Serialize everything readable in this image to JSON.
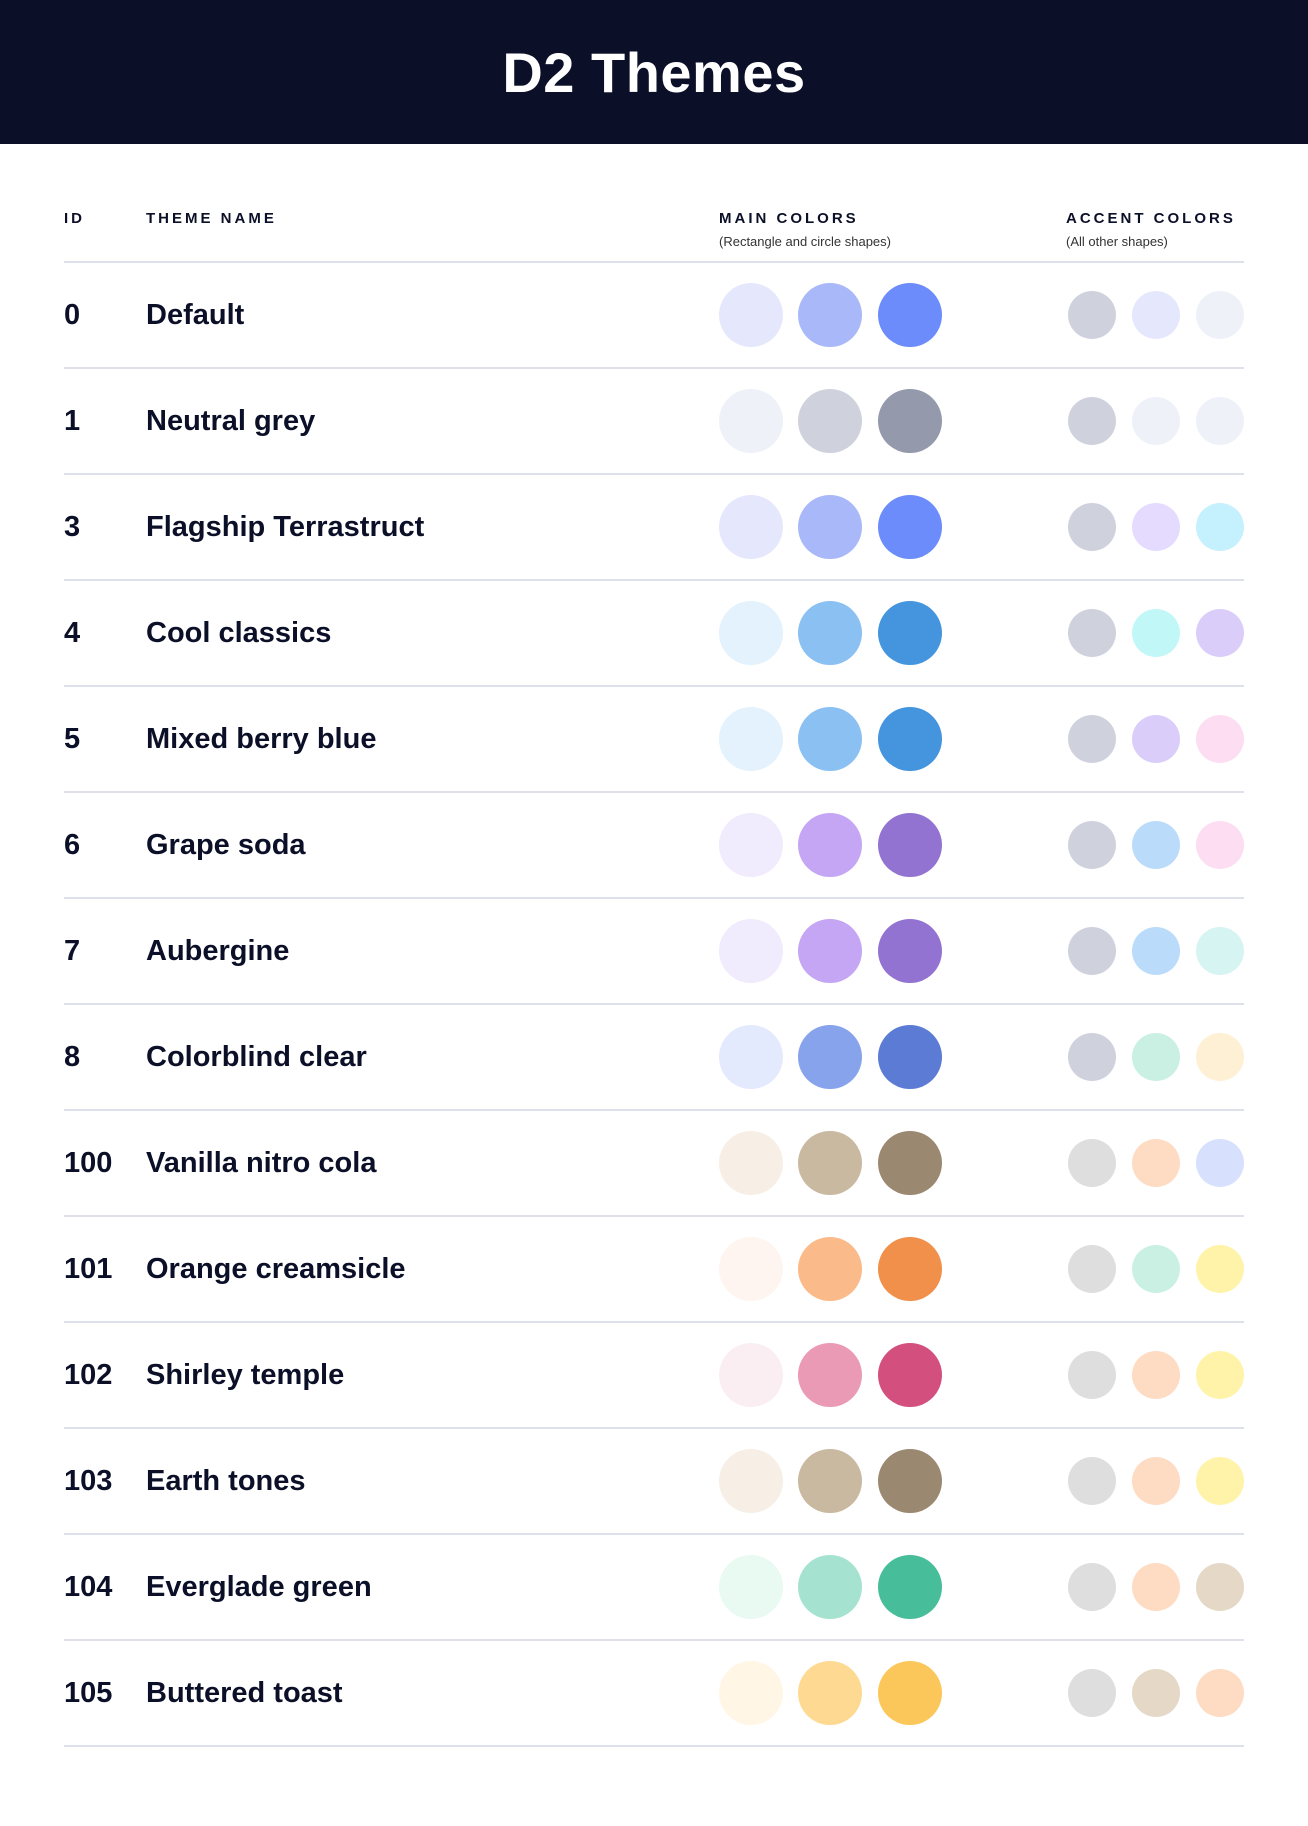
{
  "title": "D2 Themes",
  "columns": {
    "id": "ID",
    "name": "THEME NAME",
    "main": "MAIN COLORS",
    "main_sub": "(Rectangle and circle shapes)",
    "accent": "ACCENT COLORS",
    "accent_sub": "(All other shapes)"
  },
  "themes": [
    {
      "id": "0",
      "name": "Default",
      "main": [
        "#E5E8FD",
        "#A9B8F8",
        "#6C8CFC"
      ],
      "accent": [
        "#CFD2DD",
        "#E5E8FD",
        "#EEF1F8"
      ]
    },
    {
      "id": "1",
      "name": "Neutral grey",
      "main": [
        "#EEF1F8",
        "#CFD2DD",
        "#9499AB"
      ],
      "accent": [
        "#CFD2DD",
        "#EEF1F8",
        "#EEF1F8"
      ]
    },
    {
      "id": "3",
      "name": "Flagship Terrastruct",
      "main": [
        "#E5E8FD",
        "#A9B8F8",
        "#6C8CFC"
      ],
      "accent": [
        "#CFD2DD",
        "#E4DBFE",
        "#C5F0FD"
      ]
    },
    {
      "id": "4",
      "name": "Cool classics",
      "main": [
        "#E3F2FD",
        "#8BC0F3",
        "#4495DE"
      ],
      "accent": [
        "#CFD2DD",
        "#C1F8F7",
        "#DACDFA"
      ]
    },
    {
      "id": "5",
      "name": "Mixed berry blue",
      "main": [
        "#E3F2FD",
        "#8BC0F3",
        "#4495DE"
      ],
      "accent": [
        "#CFD2DD",
        "#DACDFA",
        "#FDDDF1"
      ]
    },
    {
      "id": "6",
      "name": "Grape soda",
      "main": [
        "#F0EBFD",
        "#C4A6F4",
        "#9373D1"
      ],
      "accent": [
        "#CFD2DD",
        "#BADBFA",
        "#FDDDF1"
      ]
    },
    {
      "id": "7",
      "name": "Aubergine",
      "main": [
        "#F0EBFD",
        "#C4A6F4",
        "#9373D1"
      ],
      "accent": [
        "#CFD2DD",
        "#BADBFA",
        "#D6F4F2"
      ]
    },
    {
      "id": "8",
      "name": "Colorblind clear",
      "main": [
        "#E4EAFD",
        "#87A3EC",
        "#5B7BD5"
      ],
      "accent": [
        "#CFD2DD",
        "#C9F0E3",
        "#FEF0D5"
      ]
    },
    {
      "id": "100",
      "name": "Vanilla nitro cola",
      "main": [
        "#F7EFE5",
        "#C9B9A0",
        "#9B8870"
      ],
      "accent": [
        "#DEDEDE",
        "#FEDBC3",
        "#D7E1FD"
      ]
    },
    {
      "id": "101",
      "name": "Orange creamsicle",
      "main": [
        "#FEF5F0",
        "#FBBA89",
        "#F1904A"
      ],
      "accent": [
        "#DEDEDE",
        "#CAF0E3",
        "#FEF3A9"
      ]
    },
    {
      "id": "102",
      "name": "Shirley temple",
      "main": [
        "#FBEEF2",
        "#EA9AB5",
        "#D3507E"
      ],
      "accent": [
        "#DEDEDE",
        "#FEDBC3",
        "#FEF3A9"
      ]
    },
    {
      "id": "103",
      "name": "Earth tones",
      "main": [
        "#F7EFE5",
        "#C9B9A0",
        "#9B8870"
      ],
      "accent": [
        "#DEDEDE",
        "#FEDBC3",
        "#FEF3A9"
      ]
    },
    {
      "id": "104",
      "name": "Everglade green",
      "main": [
        "#E8FAF2",
        "#A5E3D0",
        "#47BD99"
      ],
      "accent": [
        "#DEDEDE",
        "#FEDBC3",
        "#E5D8C6"
      ]
    },
    {
      "id": "105",
      "name": "Buttered toast",
      "main": [
        "#FFF6E6",
        "#FED991",
        "#FCC75A"
      ],
      "accent": [
        "#DEDEDE",
        "#E5D8C6",
        "#FEDBC3"
      ]
    }
  ]
}
